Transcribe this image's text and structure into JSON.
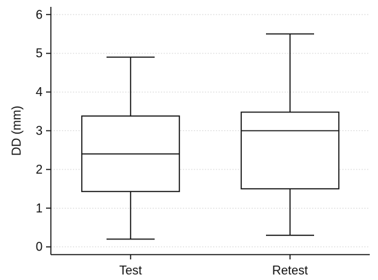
{
  "chart_data": {
    "type": "box",
    "ylabel": "DD (mm)",
    "xlabel": "",
    "title": "",
    "ylim": [
      -0.2,
      6.2
    ],
    "yticks": [
      0,
      1,
      2,
      3,
      4,
      5,
      6
    ],
    "grid": true,
    "categories": [
      "Test",
      "Retest"
    ],
    "boxes": [
      {
        "category": "Test",
        "min": 0.2,
        "q1": 1.43,
        "median": 2.4,
        "q3": 3.38,
        "max": 4.9
      },
      {
        "category": "Retest",
        "min": 0.3,
        "q1": 1.5,
        "median": 3.0,
        "q3": 3.48,
        "max": 5.5
      }
    ]
  }
}
